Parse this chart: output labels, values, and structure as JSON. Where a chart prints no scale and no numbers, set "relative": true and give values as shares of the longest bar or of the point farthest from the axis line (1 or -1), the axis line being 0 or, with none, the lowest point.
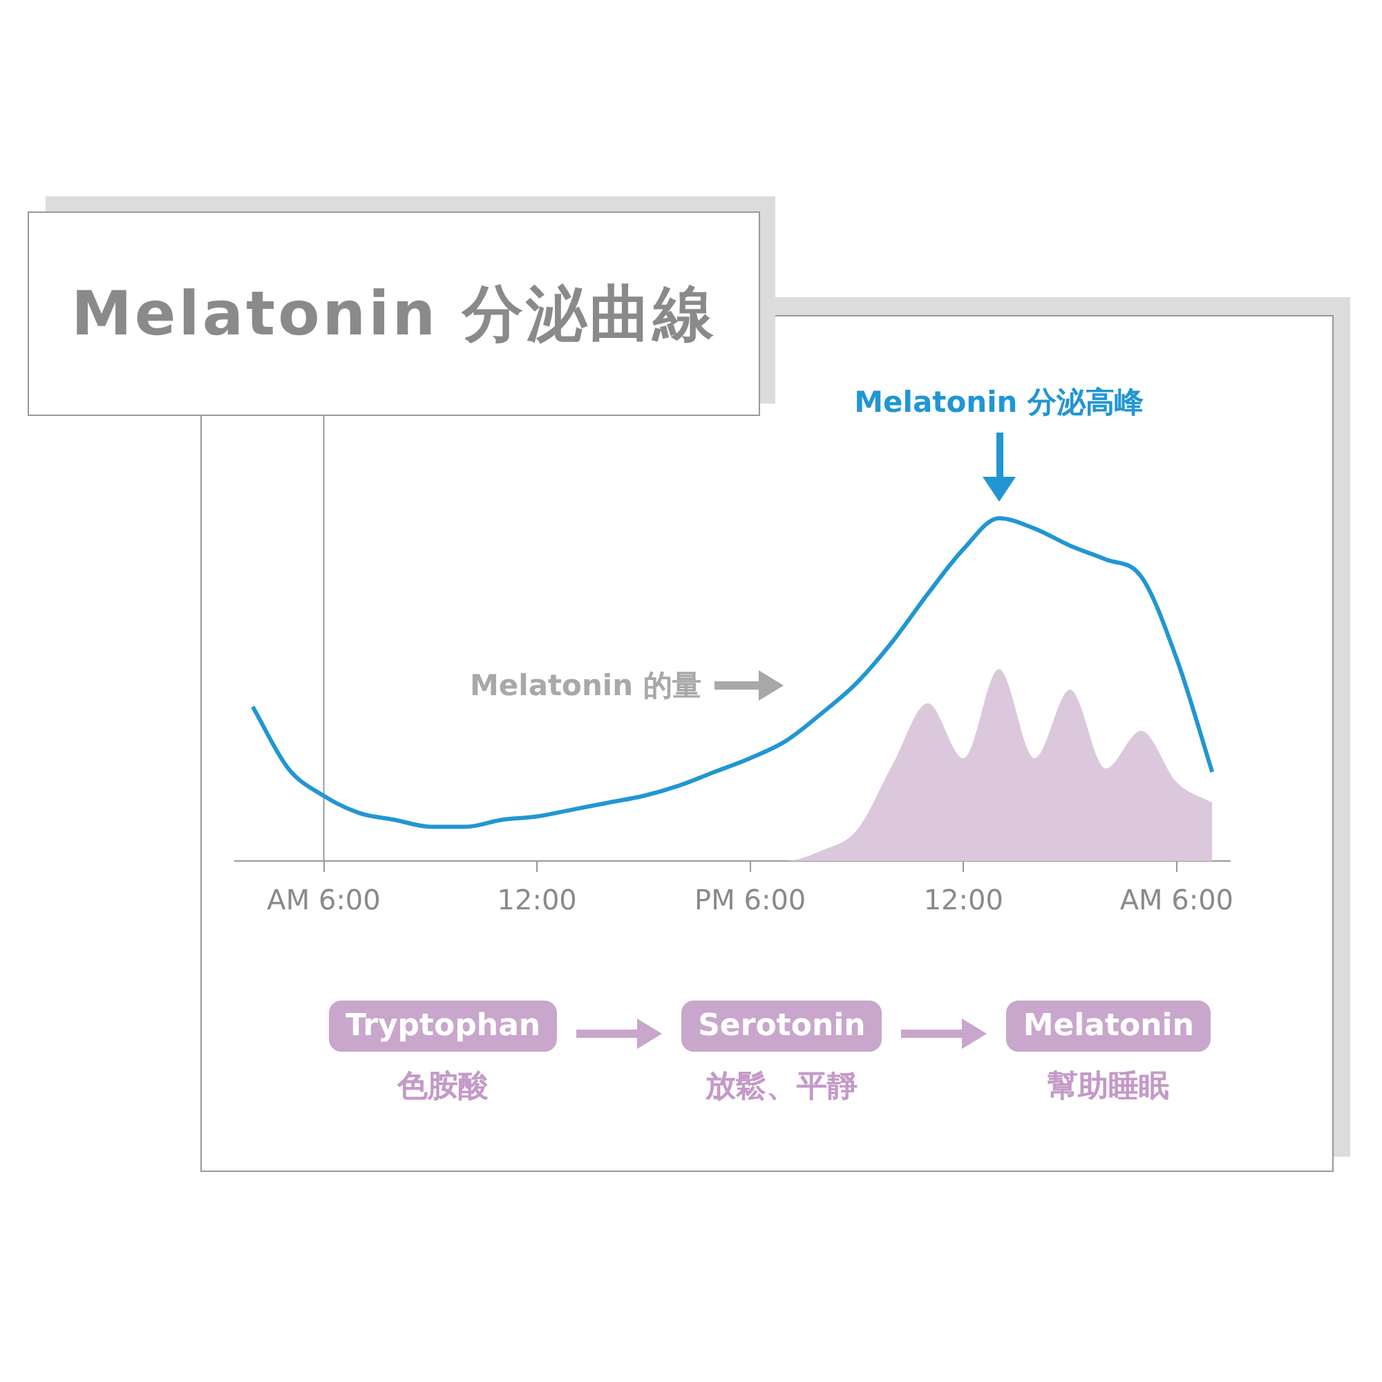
{
  "chart_data": {
    "type": "line",
    "title": "Melatonin 分泌曲線",
    "relative": true,
    "categories": [
      null,
      null,
      "AM 6:00",
      null,
      null,
      null,
      null,
      null,
      "12:00",
      null,
      null,
      null,
      null,
      null,
      "PM 6:00",
      null,
      null,
      null,
      null,
      null,
      "12:00",
      null,
      null,
      null,
      null,
      null,
      "AM 6:00",
      null
    ],
    "grid": false,
    "legend": false,
    "ref_lines": [
      {
        "axis": "x",
        "value": "AM 6:00",
        "color": "#999999"
      }
    ],
    "series": [
      {
        "type": "area",
        "color": "#dcc8dc",
        "values": [
          0,
          0,
          0,
          0,
          0,
          0,
          0,
          0,
          0,
          0,
          0,
          0,
          0,
          0,
          0,
          0,
          0.03,
          0.09,
          0.28,
          0.46,
          0.3,
          0.56,
          0.3,
          0.5,
          0.27,
          0.38,
          0.23,
          0.17
        ]
      },
      {
        "type": "line",
        "name": "Melatonin 的量",
        "color": "#2196d3",
        "values": [
          0.45,
          0.27,
          0.19,
          0.14,
          0.12,
          0.1,
          0.1,
          0.12,
          0.13,
          0.15,
          0.17,
          0.19,
          0.22,
          0.26,
          0.3,
          0.35,
          0.43,
          0.52,
          0.64,
          0.78,
          0.91,
          1,
          0.97,
          0.92,
          0.88,
          0.83,
          0.59,
          0.26
        ]
      }
    ],
    "annotations": [
      "Melatonin 分泌高峰",
      "Tryptophan",
      "色胺酸",
      "Serotonin",
      "放鬆、平靜",
      "Melatonin",
      "幫助睡眠"
    ]
  }
}
